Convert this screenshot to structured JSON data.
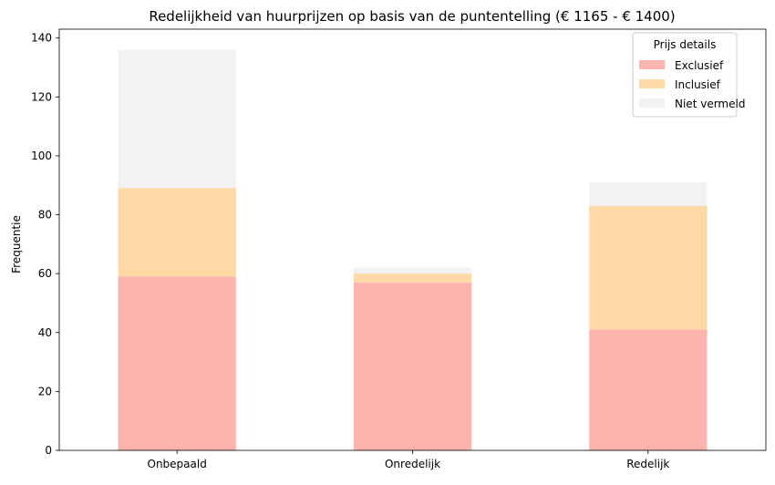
{
  "chart_data": {
    "type": "bar",
    "stacked": true,
    "title": "Redelijkheid van huurprijzen op basis van de puntentelling (€ 1165 - € 1400)",
    "xlabel": "",
    "ylabel": "Frequentie",
    "categories": [
      "Onbepaald",
      "Onredelijk",
      "Redelijk"
    ],
    "series": [
      {
        "name": "Exclusief",
        "values": [
          59,
          57,
          41
        ],
        "color": "#fbb4ae"
      },
      {
        "name": "Inclusief",
        "values": [
          30,
          3,
          42
        ],
        "color": "#fed9a6"
      },
      {
        "name": "Niet vermeld",
        "values": [
          47,
          2,
          8
        ],
        "color": "#f2f2f2"
      }
    ],
    "ylim": [
      0,
      143
    ],
    "yticks": [
      0,
      20,
      40,
      60,
      80,
      100,
      120,
      140
    ],
    "grid": false,
    "legend": {
      "title": "Prijs details",
      "position": "top-right"
    }
  }
}
